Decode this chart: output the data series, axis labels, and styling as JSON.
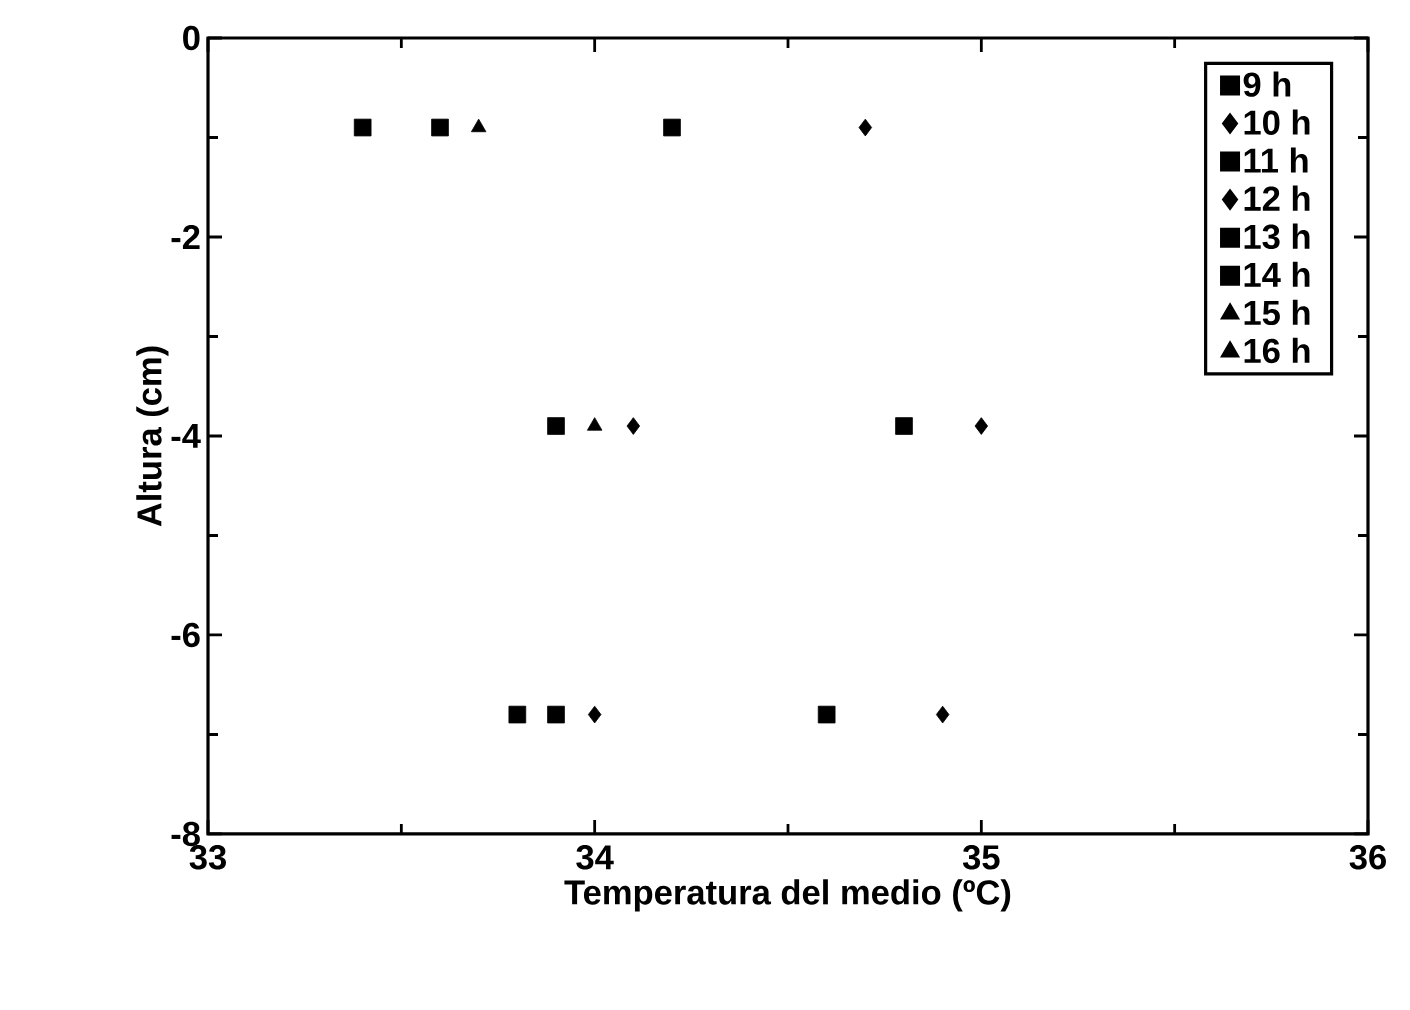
{
  "chart_data": {
    "type": "scatter",
    "xlabel": "Temperatura del medio (ºC)",
    "ylabel": "Altura (cm)",
    "xlim": [
      33,
      36
    ],
    "xticks": [
      33,
      34,
      35,
      36
    ],
    "ylim": [
      -8,
      0
    ],
    "yticks": [
      -8,
      -6,
      -4,
      -2,
      0
    ],
    "legend": "top right",
    "grid": false,
    "series": [
      {
        "name": "9 h",
        "color": "#000000",
        "marker": "square",
        "x": [
          34.2,
          34.8,
          34.6
        ],
        "values": [
          -0.9,
          -3.9,
          -6.8
        ]
      },
      {
        "name": "10 h",
        "color": "#000000",
        "marker": "diamond",
        "x": [
          34.7,
          35.0,
          34.9
        ],
        "values": [
          -0.9,
          -3.9,
          -6.8
        ]
      },
      {
        "name": "11 h",
        "color": "#000000",
        "marker": "square",
        "x": [
          33.4,
          33.9,
          33.9
        ],
        "values": [
          -0.9,
          -3.9,
          -6.8
        ]
      },
      {
        "name": "12 h",
        "color": "#000000",
        "marker": "diamond",
        "x": [
          34.1,
          34.0
        ],
        "values": [
          -3.9,
          -6.8
        ]
      },
      {
        "name": "13 h",
        "color": "#000000",
        "marker": "square",
        "x": [
          33.8
        ],
        "values": [
          -6.8
        ]
      },
      {
        "name": "14 h",
        "color": "#000000",
        "marker": "square",
        "x": [
          33.6
        ],
        "values": [
          -0.9
        ]
      },
      {
        "name": "15 h",
        "color": "#000000",
        "marker": "triangle",
        "x": [
          33.7
        ],
        "values": [
          -0.9
        ]
      },
      {
        "name": "16 h",
        "color": "#000000",
        "marker": "triangle",
        "x": [
          34.0
        ],
        "values": [
          -3.9
        ]
      }
    ]
  }
}
